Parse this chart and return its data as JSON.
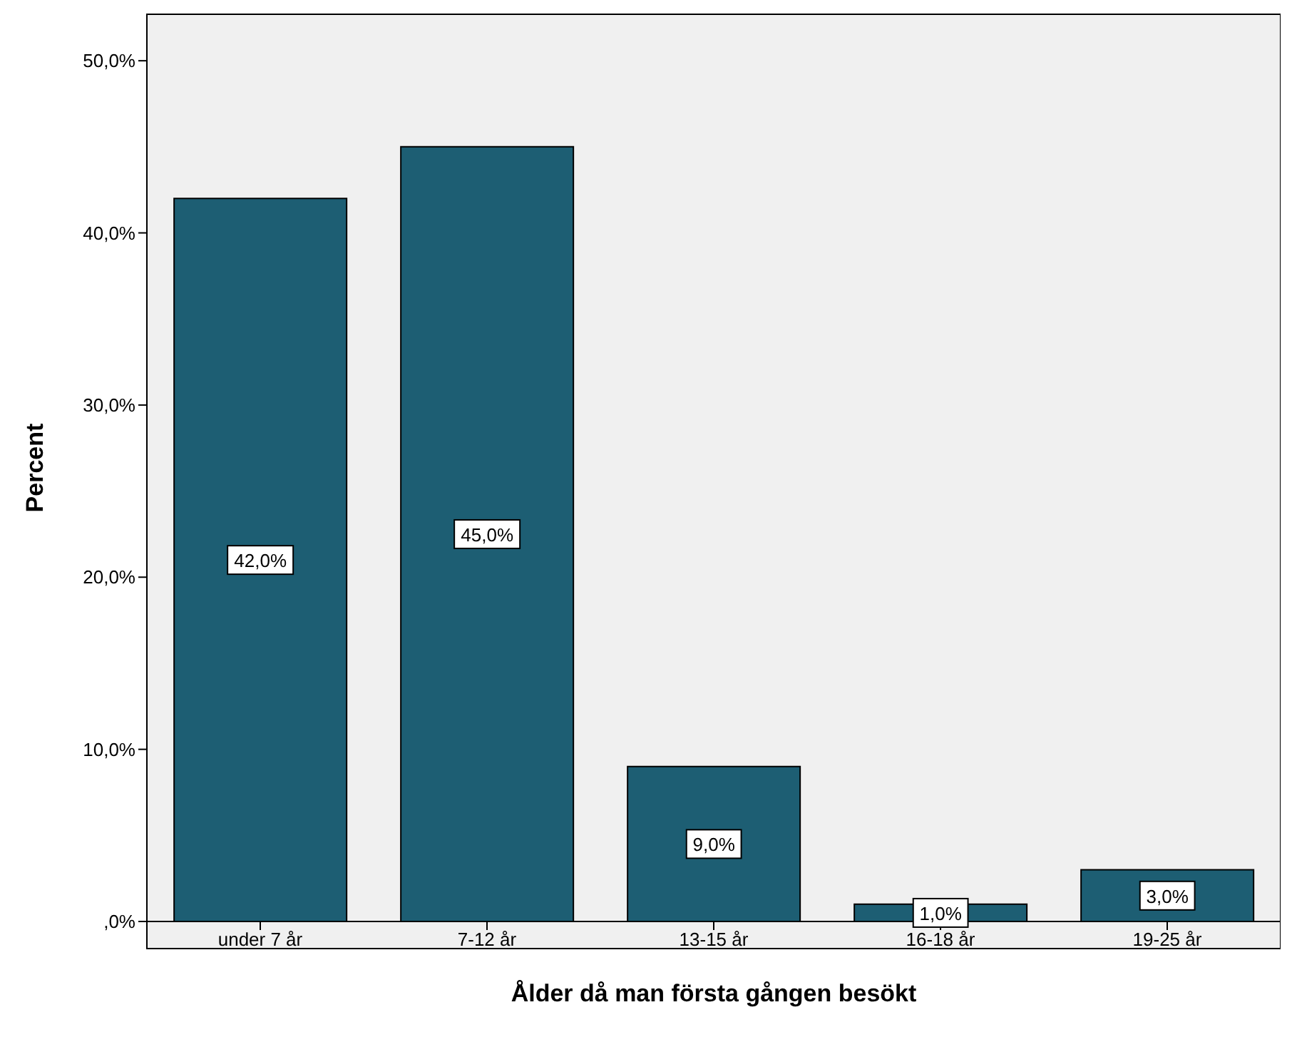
{
  "chart_data": {
    "type": "bar",
    "xlabel": "Ålder då man första gången besökt",
    "ylabel": "Percent",
    "categories": [
      "under 7 år",
      "7-12 år",
      "13-15 år",
      "16-18 år",
      "19-25 år"
    ],
    "values": [
      42,
      45,
      9,
      1,
      3
    ],
    "value_labels": [
      "42,0%",
      "45,0%",
      "9,0%",
      "1,0%",
      "3,0%"
    ],
    "color": "#1d5e73",
    "ylim": [
      0,
      52.7
    ],
    "yticks": [
      {
        "value": 0,
        "label": ",0%"
      },
      {
        "value": 10,
        "label": "10,0%"
      },
      {
        "value": 20,
        "label": "20,0%"
      },
      {
        "value": 30,
        "label": "30,0%"
      },
      {
        "value": 40,
        "label": "40,0%"
      },
      {
        "value": 50,
        "label": "50,0%"
      }
    ],
    "legend": false
  }
}
